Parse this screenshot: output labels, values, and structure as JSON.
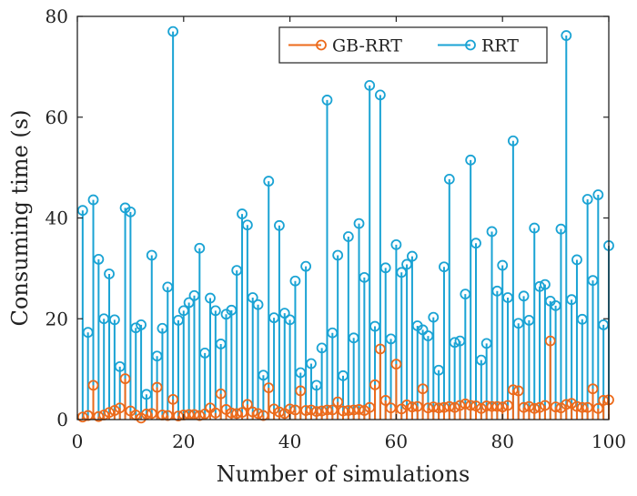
{
  "chart_data": {
    "type": "stem",
    "xlabel": "Number of simulations",
    "ylabel": "Consuming time (s)",
    "xlim": [
      0,
      100
    ],
    "ylim": [
      0,
      80
    ],
    "xticks": [
      0,
      20,
      40,
      60,
      80,
      100
    ],
    "yticks": [
      0,
      20,
      40,
      60,
      80
    ],
    "legend_position": "top-right",
    "x": [
      1,
      2,
      3,
      4,
      5,
      6,
      7,
      8,
      9,
      10,
      11,
      12,
      13,
      14,
      15,
      16,
      17,
      18,
      19,
      20,
      21,
      22,
      23,
      24,
      25,
      26,
      27,
      28,
      29,
      30,
      31,
      32,
      33,
      34,
      35,
      36,
      37,
      38,
      39,
      40,
      41,
      42,
      43,
      44,
      45,
      46,
      47,
      48,
      49,
      50,
      51,
      52,
      53,
      54,
      55,
      56,
      57,
      58,
      59,
      60,
      61,
      62,
      63,
      64,
      65,
      66,
      67,
      68,
      69,
      70,
      71,
      72,
      73,
      74,
      75,
      76,
      77,
      78,
      79,
      80,
      81,
      82,
      83,
      84,
      85,
      86,
      87,
      88,
      89,
      90,
      91,
      92,
      93,
      94,
      95,
      96,
      97,
      98,
      99,
      100
    ],
    "series": [
      {
        "name": "GB-RRT",
        "color": "#ec6a1b",
        "marker": "circle",
        "values": [
          0.5,
          0.8,
          6.8,
          0.6,
          0.9,
          1.4,
          1.8,
          2.3,
          8.1,
          1.7,
          0.9,
          0.3,
          1.1,
          1.2,
          6.4,
          0.9,
          0.8,
          4.0,
          0.7,
          0.9,
          1.0,
          1.0,
          0.8,
          1.1,
          2.3,
          1.3,
          5.1,
          2.0,
          1.3,
          1.2,
          1.4,
          3.0,
          1.5,
          1.2,
          0.8,
          6.3,
          2.1,
          1.5,
          1.2,
          2.1,
          1.9,
          5.7,
          1.8,
          1.9,
          1.6,
          1.7,
          1.9,
          1.9,
          3.5,
          1.7,
          1.8,
          1.9,
          2.0,
          1.8,
          2.4,
          6.9,
          14.0,
          3.8,
          2.3,
          11.0,
          2.1,
          2.9,
          2.5,
          2.6,
          6.1,
          2.3,
          2.5,
          2.3,
          2.4,
          2.6,
          2.4,
          2.8,
          3.1,
          2.8,
          2.7,
          2.2,
          2.7,
          2.6,
          2.6,
          2.5,
          2.8,
          5.9,
          5.7,
          2.4,
          2.6,
          2.2,
          2.4,
          2.8,
          15.6,
          2.5,
          2.3,
          3.0,
          3.2,
          2.6,
          2.4,
          2.4,
          6.1,
          2.2,
          3.8,
          3.9
        ]
      },
      {
        "name": "RRT",
        "color": "#1aa3d4",
        "marker": "circle",
        "values": [
          41.5,
          17.3,
          43.6,
          31.8,
          20.0,
          28.9,
          19.8,
          10.5,
          42.0,
          41.2,
          18.2,
          18.8,
          5.0,
          32.6,
          12.6,
          18.1,
          26.3,
          77.0,
          19.7,
          21.6,
          23.2,
          24.6,
          34.0,
          13.2,
          24.1,
          21.6,
          15.0,
          20.9,
          21.7,
          29.6,
          40.8,
          38.6,
          24.2,
          22.8,
          8.8,
          47.3,
          20.2,
          38.5,
          21.1,
          19.8,
          27.5,
          9.3,
          30.4,
          11.1,
          6.8,
          14.2,
          63.4,
          17.2,
          32.6,
          8.7,
          36.3,
          16.2,
          38.9,
          28.2,
          66.3,
          18.5,
          64.4,
          30.1,
          16.0,
          34.7,
          29.2,
          30.8,
          32.4,
          18.6,
          17.8,
          16.6,
          20.3,
          9.8,
          30.3,
          47.7,
          15.3,
          15.6,
          24.9,
          51.5,
          35.0,
          11.8,
          15.1,
          37.3,
          25.5,
          30.6,
          24.2,
          55.3,
          19.1,
          24.5,
          19.7,
          38.0,
          26.4,
          26.8,
          23.5,
          22.6,
          37.8,
          76.2,
          23.8,
          31.7,
          19.9,
          43.7,
          27.6,
          44.6,
          18.8,
          34.5
        ]
      }
    ]
  }
}
